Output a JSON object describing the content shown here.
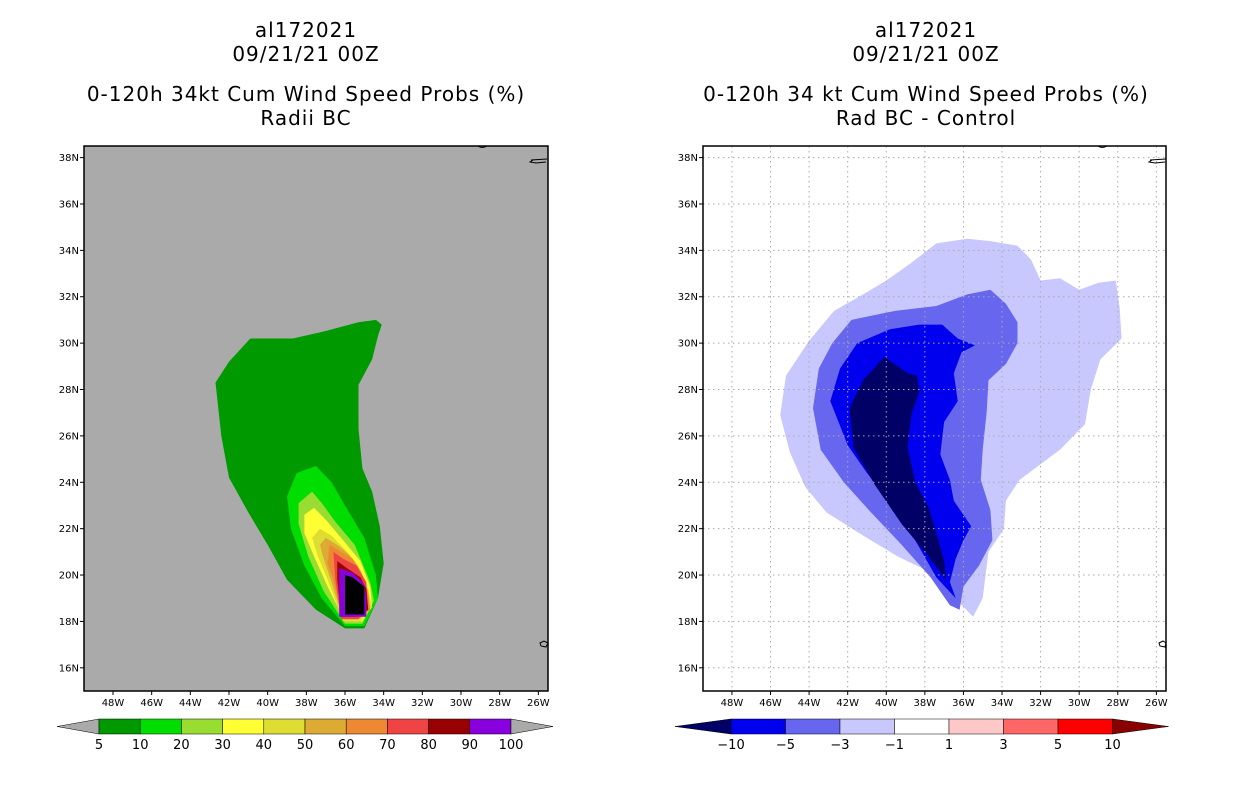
{
  "left_panel": {
    "storm_id": "al172021",
    "datetime": "09/21/21 00Z",
    "title": "0-120h 34kt Cum Wind Speed Probs (%)",
    "subtitle": "Radii BC"
  },
  "right_panel": {
    "storm_id": "al172021",
    "datetime": "09/21/21 00Z",
    "title": "0-120h 34 kt Cum Wind Speed Probs (%)",
    "subtitle": "Rad BC - Control"
  },
  "colors": {
    "map_background": "#aaaaaa",
    "gridline": "#aaaaaa",
    "left_levels": [
      "#009900",
      "#00dd00",
      "#99dd33",
      "#ffff33",
      "#dddd33",
      "#ddaa33",
      "#ee8833",
      "#ee4444",
      "#990000",
      "#8800dd"
    ],
    "right_levels": [
      "#000066",
      "#0000ee",
      "#6666ee",
      "#c8c8ff",
      "#ffffff",
      "#ffc8c8",
      "#ff6666",
      "#ff0000",
      "#880000"
    ]
  },
  "chart_data": [
    {
      "type": "heatmap",
      "title": "0-120h 34kt Cum Wind Speed Probs (%)",
      "subtitle": "Radii BC",
      "x_ticks": [
        "48W",
        "46W",
        "44W",
        "42W",
        "40W",
        "38W",
        "36W",
        "34W",
        "32W",
        "30W",
        "28W",
        "26W"
      ],
      "y_ticks": [
        "38N",
        "36N",
        "34N",
        "32N",
        "30N",
        "28N",
        "26N",
        "24N",
        "22N",
        "20N",
        "18N",
        "16N"
      ],
      "x_range_lon": [
        -49.5,
        -25.5
      ],
      "y_range_lat": [
        15.0,
        38.5
      ],
      "grid": false,
      "colorbar": {
        "labels": [
          "5",
          "10",
          "20",
          "30",
          "40",
          "50",
          "60",
          "70",
          "80",
          "90",
          "100"
        ],
        "unit": "%"
      },
      "contours": [
        {
          "level": 5,
          "points": [
            [
              -37.1,
              30.5
            ],
            [
              -36.2,
              30.7
            ],
            [
              -35.3,
              30.9
            ],
            [
              -34.4,
              31.0
            ],
            [
              -34.1,
              30.8
            ],
            [
              -34.3,
              30.3
            ],
            [
              -34.6,
              29.3
            ],
            [
              -35.3,
              28.2
            ],
            [
              -35.3,
              26.3
            ],
            [
              -35.1,
              24.6
            ],
            [
              -34.6,
              23.6
            ],
            [
              -34.2,
              22.1
            ],
            [
              -34.0,
              20.5
            ],
            [
              -34.3,
              19.0
            ],
            [
              -35.0,
              17.7
            ],
            [
              -36.0,
              17.7
            ],
            [
              -37.5,
              18.5
            ],
            [
              -39.0,
              19.8
            ],
            [
              -40.0,
              21.3
            ],
            [
              -41.0,
              22.7
            ],
            [
              -42.0,
              24.2
            ],
            [
              -42.4,
              26.0
            ],
            [
              -42.7,
              28.3
            ],
            [
              -42.0,
              29.2
            ],
            [
              -40.9,
              30.2
            ],
            [
              -39.6,
              30.2
            ],
            [
              -38.7,
              30.2
            ]
          ]
        },
        {
          "level": 10,
          "points": [
            [
              -37.5,
              24.7
            ],
            [
              -36.7,
              24.0
            ],
            [
              -36.0,
              23.0
            ],
            [
              -35.0,
              21.6
            ],
            [
              -34.4,
              20.0
            ],
            [
              -34.3,
              19.0
            ],
            [
              -35.0,
              17.8
            ],
            [
              -36.0,
              17.8
            ],
            [
              -37.2,
              19.0
            ],
            [
              -38.1,
              20.4
            ],
            [
              -38.8,
              22.0
            ],
            [
              -39.0,
              23.4
            ],
            [
              -38.5,
              24.4
            ]
          ]
        },
        {
          "level": 20,
          "points": [
            [
              -37.7,
              23.6
            ],
            [
              -37.2,
              23.1
            ],
            [
              -36.5,
              22.3
            ],
            [
              -35.5,
              21.3
            ],
            [
              -34.7,
              19.7
            ],
            [
              -34.5,
              18.9
            ],
            [
              -35.1,
              17.9
            ],
            [
              -36.0,
              17.9
            ],
            [
              -37.1,
              19.3
            ],
            [
              -37.9,
              20.8
            ],
            [
              -38.4,
              22.2
            ],
            [
              -38.4,
              23.1
            ]
          ]
        },
        {
          "level": 30,
          "points": [
            [
              -37.6,
              22.9
            ],
            [
              -36.9,
              22.3
            ],
            [
              -36.1,
              21.5
            ],
            [
              -35.2,
              20.6
            ],
            [
              -34.7,
              19.5
            ],
            [
              -34.6,
              18.7
            ],
            [
              -35.1,
              18.0
            ],
            [
              -36.0,
              18.0
            ],
            [
              -36.9,
              19.5
            ],
            [
              -37.6,
              20.8
            ],
            [
              -38.1,
              21.8
            ],
            [
              -38.1,
              22.6
            ]
          ]
        },
        {
          "level": 40,
          "points": [
            [
              -37.3,
              22.0
            ],
            [
              -36.7,
              21.7
            ],
            [
              -36.0,
              21.1
            ],
            [
              -35.3,
              20.4
            ],
            [
              -34.8,
              19.4
            ],
            [
              -34.6,
              18.6
            ],
            [
              -35.2,
              18.0
            ],
            [
              -36.1,
              18.0
            ],
            [
              -36.8,
              19.6
            ],
            [
              -37.4,
              20.8
            ],
            [
              -37.7,
              21.6
            ]
          ]
        },
        {
          "level": 50,
          "points": [
            [
              -37.0,
              21.6
            ],
            [
              -36.4,
              21.3
            ],
            [
              -35.8,
              20.9
            ],
            [
              -35.2,
              20.2
            ],
            [
              -34.8,
              19.3
            ],
            [
              -34.7,
              18.5
            ],
            [
              -35.3,
              18.1
            ],
            [
              -36.1,
              18.1
            ],
            [
              -36.7,
              19.7
            ],
            [
              -37.1,
              20.7
            ],
            [
              -37.3,
              21.3
            ]
          ]
        },
        {
          "level": 60,
          "points": [
            [
              -36.8,
              21.3
            ],
            [
              -36.2,
              21.0
            ],
            [
              -35.6,
              20.7
            ],
            [
              -35.1,
              20.0
            ],
            [
              -34.8,
              19.2
            ],
            [
              -34.7,
              18.5
            ],
            [
              -35.3,
              18.1
            ],
            [
              -36.1,
              18.1
            ],
            [
              -36.6,
              19.8
            ],
            [
              -36.9,
              20.5
            ]
          ]
        },
        {
          "level": 70,
          "points": [
            [
              -36.6,
              21.0
            ],
            [
              -36.1,
              20.7
            ],
            [
              -35.4,
              20.4
            ],
            [
              -34.9,
              19.7
            ],
            [
              -34.8,
              18.5
            ],
            [
              -35.3,
              18.1
            ],
            [
              -36.2,
              18.1
            ],
            [
              -36.5,
              19.8
            ]
          ]
        },
        {
          "level": 80,
          "points": [
            [
              -36.4,
              20.6
            ],
            [
              -35.9,
              20.3
            ],
            [
              -35.2,
              19.9
            ],
            [
              -34.9,
              19.4
            ],
            [
              -34.8,
              18.5
            ],
            [
              -35.4,
              18.2
            ],
            [
              -36.2,
              18.2
            ],
            [
              -36.4,
              19.8
            ]
          ]
        },
        {
          "level": 90,
          "points": [
            [
              -36.3,
              20.3
            ],
            [
              -35.6,
              20.1
            ],
            [
              -35.0,
              19.6
            ],
            [
              -34.9,
              19.0
            ],
            [
              -34.9,
              18.2
            ],
            [
              -35.4,
              18.2
            ],
            [
              -36.3,
              18.2
            ],
            [
              -36.3,
              19.5
            ]
          ]
        },
        {
          "level": 100,
          "points": [
            [
              -36.0,
              20.0
            ],
            [
              -35.6,
              19.9
            ],
            [
              -35.0,
              19.5
            ],
            [
              -35.0,
              18.3
            ],
            [
              -35.5,
              18.3
            ],
            [
              -36.0,
              18.3
            ],
            [
              -36.0,
              19.5
            ]
          ]
        }
      ]
    },
    {
      "type": "heatmap",
      "title": "0-120h 34 kt Cum Wind Speed Probs (%)",
      "subtitle": "Rad BC - Control",
      "x_ticks": [
        "48W",
        "46W",
        "44W",
        "42W",
        "40W",
        "38W",
        "36W",
        "34W",
        "32W",
        "30W",
        "28W",
        "26W"
      ],
      "y_ticks": [
        "38N",
        "36N",
        "34N",
        "32N",
        "30N",
        "28N",
        "26N",
        "24N",
        "22N",
        "20N",
        "18N",
        "16N"
      ],
      "x_range_lon": [
        -49.5,
        -25.5
      ],
      "y_range_lat": [
        15.0,
        38.5
      ],
      "grid": true,
      "colorbar": {
        "labels": [
          "-10",
          "-5",
          "-3",
          "-1",
          "1",
          "3",
          "5",
          "10"
        ],
        "unit": "%"
      },
      "contours": [
        {
          "level": -1,
          "points": [
            [
              -40.0,
              32.7
            ],
            [
              -38.8,
              33.4
            ],
            [
              -37.4,
              34.3
            ],
            [
              -35.8,
              34.5
            ],
            [
              -34.6,
              34.4
            ],
            [
              -33.2,
              34.2
            ],
            [
              -32.5,
              33.6
            ],
            [
              -32.0,
              32.7
            ],
            [
              -31.0,
              32.8
            ],
            [
              -30.0,
              32.3
            ],
            [
              -29.0,
              32.6
            ],
            [
              -28.1,
              32.7
            ],
            [
              -27.9,
              31.5
            ],
            [
              -27.8,
              30.2
            ],
            [
              -28.9,
              29.3
            ],
            [
              -29.4,
              28.0
            ],
            [
              -29.7,
              26.5
            ],
            [
              -31.0,
              25.4
            ],
            [
              -33.1,
              24.1
            ],
            [
              -33.8,
              23.2
            ],
            [
              -33.9,
              22.0
            ],
            [
              -34.7,
              21.0
            ],
            [
              -35.0,
              19.0
            ],
            [
              -35.5,
              18.2
            ],
            [
              -36.2,
              18.8
            ],
            [
              -37.4,
              20.0
            ],
            [
              -39.4,
              20.8
            ],
            [
              -41.4,
              21.8
            ],
            [
              -43.1,
              22.7
            ],
            [
              -44.2,
              23.8
            ],
            [
              -45.0,
              25.3
            ],
            [
              -45.5,
              26.9
            ],
            [
              -45.2,
              28.6
            ],
            [
              -44.0,
              30.1
            ],
            [
              -42.7,
              31.4
            ],
            [
              -41.2,
              32.1
            ]
          ]
        },
        {
          "level": -3,
          "points": [
            [
              -41.8,
              31.0
            ],
            [
              -39.5,
              31.4
            ],
            [
              -37.4,
              31.6
            ],
            [
              -35.8,
              32.1
            ],
            [
              -34.6,
              32.3
            ],
            [
              -33.8,
              31.7
            ],
            [
              -33.2,
              30.9
            ],
            [
              -33.2,
              30.0
            ],
            [
              -33.8,
              29.1
            ],
            [
              -34.7,
              28.4
            ],
            [
              -34.8,
              27.0
            ],
            [
              -35.0,
              25.4
            ],
            [
              -35.1,
              24.1
            ],
            [
              -34.6,
              22.8
            ],
            [
              -34.5,
              21.5
            ],
            [
              -35.2,
              20.4
            ],
            [
              -36.0,
              19.5
            ],
            [
              -36.2,
              18.5
            ],
            [
              -36.7,
              18.7
            ],
            [
              -37.7,
              19.9
            ],
            [
              -39.2,
              21.3
            ],
            [
              -40.9,
              22.8
            ],
            [
              -42.2,
              24.0
            ],
            [
              -43.4,
              25.4
            ],
            [
              -43.8,
              27.2
            ],
            [
              -43.5,
              28.9
            ],
            [
              -42.8,
              30.0
            ]
          ]
        },
        {
          "level": -5,
          "points": [
            [
              -41.5,
              30.0
            ],
            [
              -39.8,
              30.6
            ],
            [
              -38.3,
              30.8
            ],
            [
              -37.1,
              30.8
            ],
            [
              -36.3,
              30.2
            ],
            [
              -35.4,
              29.9
            ],
            [
              -36.1,
              29.6
            ],
            [
              -36.5,
              28.7
            ],
            [
              -36.3,
              27.5
            ],
            [
              -37.0,
              26.6
            ],
            [
              -37.2,
              25.2
            ],
            [
              -36.7,
              24.1
            ],
            [
              -36.5,
              23.2
            ],
            [
              -35.6,
              22.1
            ],
            [
              -36.0,
              21.5
            ],
            [
              -36.4,
              20.7
            ],
            [
              -36.7,
              19.7
            ],
            [
              -36.4,
              19.0
            ],
            [
              -37.4,
              19.9
            ],
            [
              -38.5,
              21.5
            ],
            [
              -39.8,
              23.1
            ],
            [
              -41.0,
              24.4
            ],
            [
              -42.0,
              25.6
            ],
            [
              -42.9,
              27.5
            ],
            [
              -42.4,
              28.9
            ]
          ]
        },
        {
          "level": -10,
          "points": [
            [
              -40.1,
              29.4
            ],
            [
              -39.4,
              29.0
            ],
            [
              -38.9,
              28.7
            ],
            [
              -38.4,
              28.6
            ],
            [
              -38.3,
              27.9
            ],
            [
              -38.7,
              26.9
            ],
            [
              -38.9,
              25.5
            ],
            [
              -38.5,
              24.0
            ],
            [
              -37.8,
              22.9
            ],
            [
              -37.3,
              21.5
            ],
            [
              -37.0,
              20.6
            ],
            [
              -36.9,
              19.8
            ],
            [
              -37.9,
              20.9
            ],
            [
              -39.2,
              22.2
            ],
            [
              -40.6,
              23.9
            ],
            [
              -41.7,
              25.5
            ],
            [
              -41.9,
              27.2
            ],
            [
              -41.2,
              28.4
            ]
          ]
        }
      ]
    }
  ]
}
